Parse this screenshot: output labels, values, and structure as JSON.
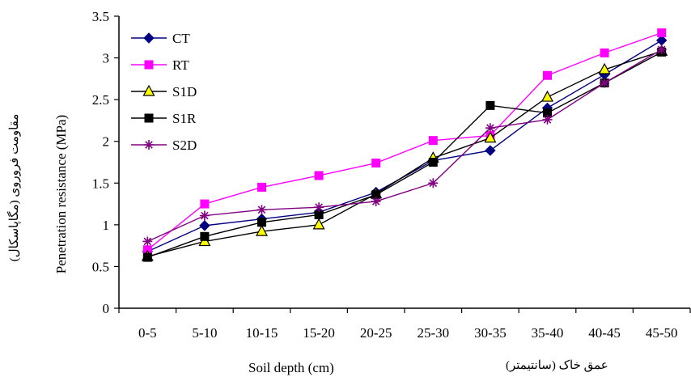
{
  "chart_data": {
    "type": "line",
    "categories": [
      "0-5",
      "5-10",
      "10-15",
      "15-20",
      "20-25",
      "25-30",
      "30-35",
      "35-40",
      "40-45",
      "45-50"
    ],
    "xlabel": "Soil depth (cm)",
    "xlabel_fa": "عمق خاک (سانتیمتر)",
    "ylabel": "Penetration resistance (MPa)",
    "ylabel_fa": "مقاومت فروروی (مگاپاسکال)",
    "ylim": [
      0,
      3.5
    ],
    "yticks": [
      0,
      0.5,
      1,
      1.5,
      2,
      2.5,
      3,
      3.5
    ],
    "ytick_labels": [
      "0",
      "0.5",
      "1",
      "1.5",
      "2",
      "2.5",
      "3",
      "3.5"
    ],
    "grid": false,
    "legend_position": "top-left",
    "series": [
      {
        "name": "CT",
        "color": "#000080",
        "marker": "diamond",
        "values": [
          0.68,
          0.99,
          1.07,
          1.15,
          1.39,
          1.77,
          1.89,
          2.4,
          2.8,
          3.21
        ]
      },
      {
        "name": "RT",
        "color": "#FF00FF",
        "marker": "square",
        "values": [
          0.7,
          1.25,
          1.45,
          1.59,
          1.74,
          2.01,
          2.07,
          2.79,
          3.06,
          3.3
        ]
      },
      {
        "name": "S1D",
        "color": "#000000",
        "marker": "triangle",
        "values": [
          0.62,
          0.8,
          0.92,
          1.0,
          1.37,
          1.8,
          2.04,
          2.53,
          2.86,
          3.08
        ]
      },
      {
        "name": "S1R",
        "color": "#000000",
        "marker": "square-black",
        "values": [
          0.61,
          0.86,
          1.03,
          1.12,
          1.36,
          1.75,
          2.43,
          2.34,
          2.7,
          3.07
        ]
      },
      {
        "name": "S2D",
        "color": "#800080",
        "marker": "star",
        "values": [
          0.8,
          1.11,
          1.18,
          1.21,
          1.28,
          1.5,
          2.16,
          2.26,
          2.7,
          3.1
        ]
      }
    ]
  }
}
